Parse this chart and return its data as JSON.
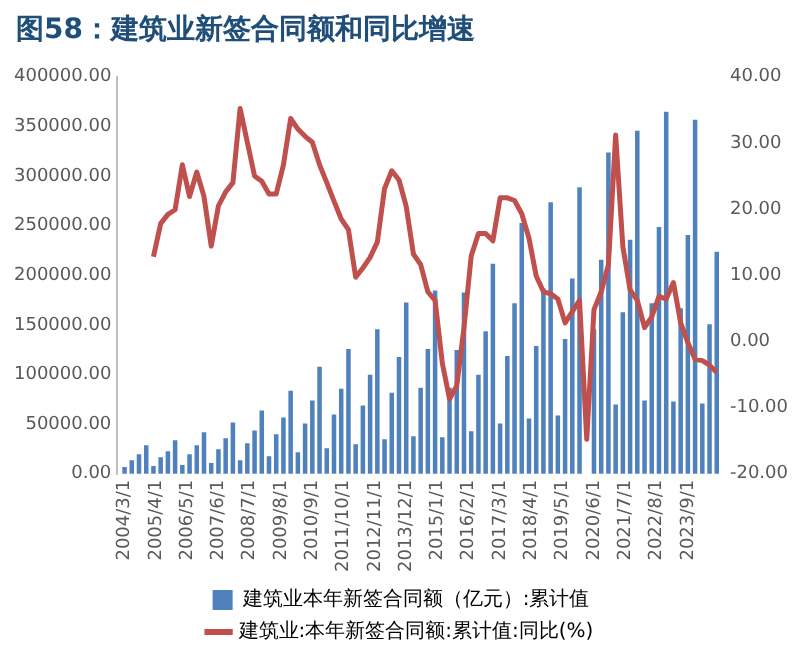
{
  "chart_data": {
    "type": "bar",
    "title": "图58：建筑业新签合同额和同比增速",
    "x": [
      "2004-03",
      "2004-06",
      "2004-09",
      "2004-12",
      "2005-03",
      "2005-06",
      "2005-09",
      "2005-12",
      "2006-03",
      "2006-06",
      "2006-09",
      "2006-12",
      "2007-03",
      "2007-06",
      "2007-09",
      "2007-12",
      "2008-03",
      "2008-06",
      "2008-09",
      "2008-12",
      "2009-03",
      "2009-06",
      "2009-09",
      "2009-12",
      "2010-03",
      "2010-06",
      "2010-09",
      "2010-12",
      "2011-03",
      "2011-06",
      "2011-09",
      "2011-12",
      "2012-03",
      "2012-06",
      "2012-09",
      "2012-12",
      "2013-03",
      "2013-06",
      "2013-09",
      "2013-12",
      "2014-03",
      "2014-06",
      "2014-09",
      "2014-12",
      "2015-03",
      "2015-06",
      "2015-09",
      "2015-12",
      "2016-03",
      "2016-06",
      "2016-09",
      "2016-12",
      "2017-03",
      "2017-06",
      "2017-09",
      "2017-12",
      "2018-03",
      "2018-06",
      "2018-09",
      "2018-12",
      "2019-03",
      "2019-06",
      "2019-09",
      "2019-12",
      "2020-03",
      "2020-06",
      "2020-09",
      "2020-12",
      "2021-03",
      "2021-06",
      "2021-09",
      "2021-12",
      "2022-03",
      "2022-06",
      "2022-09",
      "2022-12",
      "2023-03",
      "2023-06",
      "2023-09",
      "2023-12",
      "2024-03",
      "2024-06",
      "2024-09"
    ],
    "series": [
      {
        "name": "建筑业本年新签合同额（亿元）:累计值",
        "color": "#4f81bd",
        "values": [
          6000,
          13000,
          19000,
          28000,
          7000,
          16000,
          22000,
          33000,
          8000,
          19000,
          28000,
          41000,
          10000,
          24000,
          35000,
          51000,
          13000,
          30000,
          43000,
          63000,
          17000,
          39000,
          56000,
          83000,
          21000,
          50000,
          73000,
          107000,
          25000,
          59000,
          85000,
          125000,
          29000,
          68000,
          99000,
          145000,
          34000,
          81000,
          117000,
          172000,
          37000,
          86000,
          125000,
          184000,
          36000,
          86000,
          124000,
          182000,
          42000,
          99000,
          143000,
          211000,
          50000,
          118000,
          171000,
          252000,
          55000,
          128000,
          186000,
          273000,
          58000,
          135000,
          196000,
          288000,
          null,
          145000,
          215000,
          323000,
          69000,
          162000,
          235000,
          345000,
          73000,
          171000,
          248000,
          364000,
          72000,
          166000,
          240000,
          356000,
          70000,
          150000,
          223000
        ]
      },
      {
        "name": "建筑业:本年新签合同额:累计值:同比(%)",
        "type": "line",
        "axis": "y2",
        "color": "#c0504d",
        "values": [
          null,
          null,
          null,
          null,
          12.8,
          17.8,
          19.2,
          19.9,
          26.7,
          21.9,
          25.6,
          21.9,
          14.4,
          20.5,
          22.6,
          24.0,
          35.2,
          30.1,
          25.0,
          24.2,
          22.3,
          22.3,
          26.7,
          33.7,
          32.1,
          31.0,
          30.1,
          26.7,
          24.0,
          21.2,
          18.5,
          16.9,
          9.7,
          11.1,
          12.7,
          15.0,
          23.1,
          25.8,
          24.4,
          20.4,
          13.2,
          11.6,
          7.5,
          6.2,
          -3.3,
          -8.7,
          -6.7,
          2.1,
          12.9,
          16.3,
          16.3,
          15.2,
          21.7,
          21.7,
          21.3,
          19.3,
          15.6,
          9.9,
          7.5,
          7.2,
          6.4,
          2.8,
          4.5,
          6.2,
          -14.8,
          4.8,
          7.5,
          11.6,
          31.2,
          14.3,
          7.8,
          6.2,
          2.1,
          3.7,
          6.8,
          6.4,
          8.9,
          2.8,
          -0.2,
          -2.7,
          -2.9,
          -3.6,
          -4.7
        ]
      }
    ],
    "xlim": [
      "2003-12",
      "2024-12"
    ],
    "xticks": [
      {
        "value": "2004-03",
        "label": "2004/3/1"
      },
      {
        "value": "2005-04",
        "label": "2005/4/1"
      },
      {
        "value": "2006-05",
        "label": "2006/5/1"
      },
      {
        "value": "2007-06",
        "label": "2007/6/1"
      },
      {
        "value": "2008-07",
        "label": "2008/7/1"
      },
      {
        "value": "2009-08",
        "label": "2009/8/1"
      },
      {
        "value": "2010-09",
        "label": "2010/9/1"
      },
      {
        "value": "2011-10",
        "label": "2011/10/1"
      },
      {
        "value": "2012-11",
        "label": "2012/11/1"
      },
      {
        "value": "2013-12",
        "label": "2013/12/1"
      },
      {
        "value": "2015-01",
        "label": "2015/1/1"
      },
      {
        "value": "2016-02",
        "label": "2016/2/1"
      },
      {
        "value": "2017-03",
        "label": "2017/3/1"
      },
      {
        "value": "2018-04",
        "label": "2018/4/1"
      },
      {
        "value": "2019-05",
        "label": "2019/5/1"
      },
      {
        "value": "2020-06",
        "label": "2020/6/1"
      },
      {
        "value": "2021-07",
        "label": "2021/7/1"
      },
      {
        "value": "2022-08",
        "label": "2022/8/1"
      },
      {
        "value": "2023-09",
        "label": "2023/9/1"
      }
    ],
    "ylim": [
      0,
      400000
    ],
    "yticks": [
      {
        "value": 0,
        "label": "0.00"
      },
      {
        "value": 50000,
        "label": "50000.00"
      },
      {
        "value": 100000,
        "label": "100000.00"
      },
      {
        "value": 150000,
        "label": "150000.00"
      },
      {
        "value": 200000,
        "label": "200000.00"
      },
      {
        "value": 250000,
        "label": "250000.00"
      },
      {
        "value": 300000,
        "label": "300000.00"
      },
      {
        "value": 350000,
        "label": "350000.00"
      },
      {
        "value": 400000,
        "label": "400000.00"
      }
    ],
    "y2lim": [
      -20,
      40
    ],
    "y2ticks": [
      {
        "value": -20,
        "label": "-20.00"
      },
      {
        "value": -10,
        "label": "-10.00"
      },
      {
        "value": 0,
        "label": "0.00"
      },
      {
        "value": 10,
        "label": "10.00"
      },
      {
        "value": 20,
        "label": "20.00"
      },
      {
        "value": 30,
        "label": "30.00"
      },
      {
        "value": 40,
        "label": "40.00"
      }
    ],
    "grid": false,
    "legend": "bottom",
    "marker": "none",
    "line_style": "solid"
  }
}
